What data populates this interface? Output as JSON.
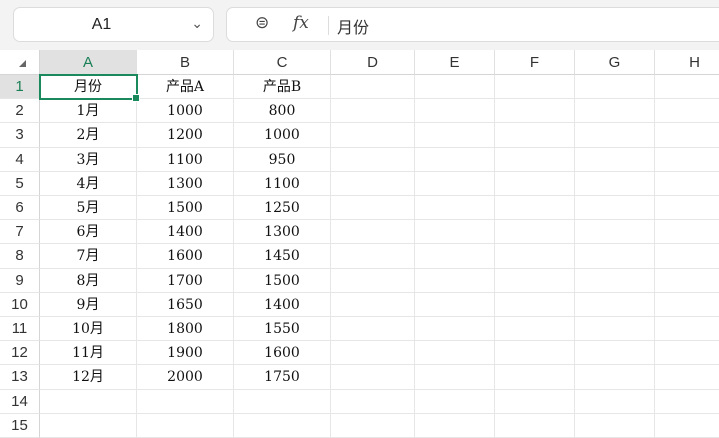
{
  "toolbar": {
    "name_box": "A1",
    "formula": "月份",
    "zoom_icon": "zoom-icon",
    "fx_label": "fx"
  },
  "columns": [
    "A",
    "B",
    "C",
    "D",
    "E",
    "F",
    "G",
    "H"
  ],
  "rows": [
    "1",
    "2",
    "3",
    "4",
    "5",
    "6",
    "7",
    "8",
    "9",
    "10",
    "11",
    "12",
    "13",
    "14",
    "15"
  ],
  "selected_cell": "A1",
  "accent": "#1a8a5c",
  "cells": [
    [
      "月份",
      "产品A",
      "产品B"
    ],
    [
      "1月",
      "1000",
      "800"
    ],
    [
      "2月",
      "1200",
      "1000"
    ],
    [
      "3月",
      "1100",
      "950"
    ],
    [
      "4月",
      "1300",
      "1100"
    ],
    [
      "5月",
      "1500",
      "1250"
    ],
    [
      "6月",
      "1400",
      "1300"
    ],
    [
      "7月",
      "1600",
      "1450"
    ],
    [
      "8月",
      "1700",
      "1500"
    ],
    [
      "9月",
      "1650",
      "1400"
    ],
    [
      "10月",
      "1800",
      "1550"
    ],
    [
      "11月",
      "1900",
      "1600"
    ],
    [
      "12月",
      "2000",
      "1750"
    ]
  ]
}
